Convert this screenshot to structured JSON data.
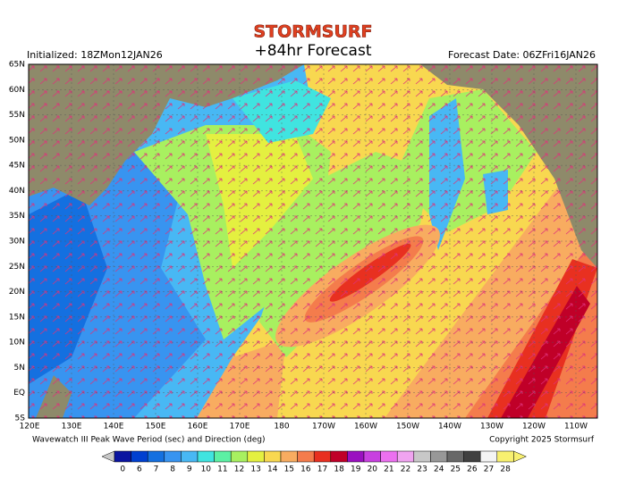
{
  "header": {
    "brand": "STORMSURF",
    "title": "+84hr Forecast",
    "initialized": "Initialized: 18ZMon12JAN26",
    "forecast_date": "Forecast Date: 06ZFri16JAN26"
  },
  "map": {
    "lat_labels": [
      "65N",
      "60N",
      "55N",
      "50N",
      "45N",
      "40N",
      "35N",
      "30N",
      "25N",
      "20N",
      "15N",
      "10N",
      "5N",
      "EQ",
      "5S"
    ],
    "lon_labels": [
      "120E",
      "130E",
      "140E",
      "150E",
      "160E",
      "170E",
      "180",
      "170W",
      "160W",
      "150W",
      "140W",
      "130W",
      "120W",
      "110W"
    ]
  },
  "footer": {
    "caption": "Wavewatch III Peak Wave Period (sec) and Direction (deg)",
    "copyright": "Copyright 2025 Stormsurf"
  },
  "legend": {
    "items": [
      {
        "label": 0,
        "color": "#0a14a0"
      },
      {
        "label": 6,
        "color": "#0040d0"
      },
      {
        "label": 7,
        "color": "#1470e0"
      },
      {
        "label": 8,
        "color": "#3894f0"
      },
      {
        "label": 9,
        "color": "#48b8f4"
      },
      {
        "label": 10,
        "color": "#40e4e0"
      },
      {
        "label": 11,
        "color": "#5cf0a4"
      },
      {
        "label": 12,
        "color": "#a8f060"
      },
      {
        "label": 13,
        "color": "#e4f040"
      },
      {
        "label": 14,
        "color": "#f8d850"
      },
      {
        "label": 15,
        "color": "#f8ac60"
      },
      {
        "label": 16,
        "color": "#f47c4c"
      },
      {
        "label": 17,
        "color": "#e83020"
      },
      {
        "label": 18,
        "color": "#c00028"
      },
      {
        "label": 19,
        "color": "#9a10c0"
      },
      {
        "label": 20,
        "color": "#c840e0"
      },
      {
        "label": 21,
        "color": "#ec70f0"
      },
      {
        "label": 22,
        "color": "#f0a4f0"
      },
      {
        "label": 23,
        "color": "#c8c8c8"
      },
      {
        "label": 24,
        "color": "#989898"
      },
      {
        "label": 25,
        "color": "#686868"
      },
      {
        "label": 26,
        "color": "#404040"
      },
      {
        "label": 27,
        "color": "#f4f4f4"
      },
      {
        "label": 28,
        "color": "#f8f070"
      }
    ]
  }
}
